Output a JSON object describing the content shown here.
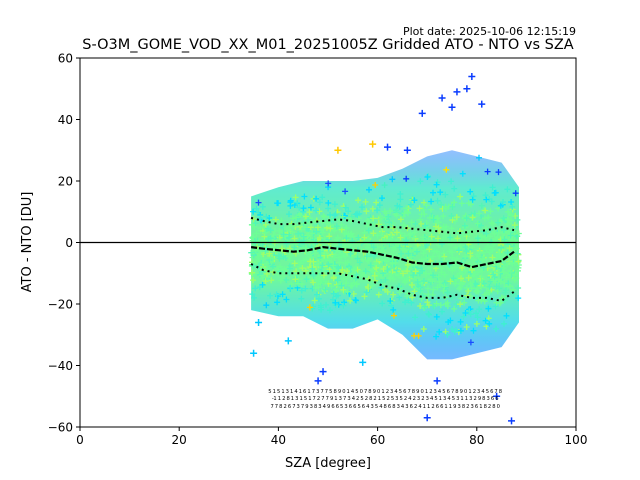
{
  "chart_data": {
    "type": "scatter",
    "title": "S-O3M_GOME_VOD_XX_M01_20251005Z Gridded ATO - NTO vs SZA",
    "plot_date": "Plot date: 2025-10-06 12:15:19",
    "xlabel": "SZA [degree]",
    "ylabel": "ATO - NTO [DU]",
    "xlim": [
      0,
      100
    ],
    "ylim": [
      -60,
      60
    ],
    "x_ticks": [
      "0",
      "20",
      "40",
      "60",
      "80",
      "100"
    ],
    "y_ticks": [
      "−60",
      "−40",
      "−20",
      "0",
      "20",
      "40",
      "60"
    ],
    "x_tick_values": [
      0,
      20,
      40,
      60,
      80,
      100
    ],
    "y_tick_values": [
      -60,
      -40,
      -20,
      0,
      20,
      40,
      60
    ],
    "grid": false,
    "marker": "+",
    "reference_line_y": 0,
    "sza_range": [
      34,
      89
    ],
    "cloud_envelope": {
      "sza": [
        34.5,
        40,
        45,
        50,
        55,
        60,
        65,
        70,
        75,
        80,
        85,
        88.5
      ],
      "upper": [
        15,
        18,
        20,
        20,
        20,
        21,
        24,
        28,
        30,
        28,
        26,
        18
      ],
      "lower": [
        -22,
        -24,
        -24,
        -28,
        -28,
        -25,
        -30,
        -38,
        -38,
        -36,
        -34,
        -26
      ]
    },
    "series": [
      {
        "name": "median",
        "style": "dashed-black",
        "x": [
          34.5,
          37,
          40,
          43,
          46,
          49,
          52,
          55,
          58,
          61,
          64,
          67,
          70,
          73,
          76,
          79,
          82,
          85,
          87.5
        ],
        "y": [
          -1.5,
          -2,
          -2.5,
          -3,
          -2.5,
          -1.5,
          -2,
          -2.5,
          -3,
          -4,
          -5,
          -6.5,
          -7,
          -7,
          -6.5,
          -8,
          -7,
          -6,
          -3
        ]
      },
      {
        "name": "upper quartile",
        "style": "dotted-black",
        "x": [
          34.5,
          37,
          40,
          43,
          46,
          49,
          52,
          55,
          58,
          61,
          64,
          67,
          70,
          73,
          76,
          79,
          82,
          85,
          87.5
        ],
        "y": [
          8,
          7,
          6,
          6,
          6.5,
          7,
          7.5,
          7,
          6,
          5,
          5,
          4.5,
          4,
          3.5,
          3,
          3.5,
          4,
          5,
          4
        ]
      },
      {
        "name": "lower quartile",
        "style": "dotted-black",
        "x": [
          34.5,
          37,
          40,
          43,
          46,
          49,
          52,
          55,
          58,
          61,
          64,
          67,
          70,
          73,
          76,
          79,
          82,
          85,
          87.5
        ],
        "y": [
          -7,
          -9,
          -10,
          -10,
          -10,
          -10,
          -10,
          -11,
          -12,
          -14,
          -15,
          -17,
          -18,
          -18,
          -17,
          -18,
          -18,
          -19,
          -16
        ]
      }
    ],
    "outliers": [
      {
        "x": 79,
        "y": 54
      },
      {
        "x": 76,
        "y": 49
      },
      {
        "x": 73,
        "y": 47
      },
      {
        "x": 81,
        "y": 45
      },
      {
        "x": 69,
        "y": 42
      },
      {
        "x": 78,
        "y": 50
      },
      {
        "x": 75,
        "y": 44
      },
      {
        "x": 48,
        "y": -45
      },
      {
        "x": 49,
        "y": -42
      },
      {
        "x": 36,
        "y": -26
      },
      {
        "x": 35,
        "y": -36
      },
      {
        "x": 42,
        "y": -32
      },
      {
        "x": 70,
        "y": -57
      },
      {
        "x": 87,
        "y": -58
      },
      {
        "x": 57,
        "y": -39
      },
      {
        "x": 62,
        "y": 31
      },
      {
        "x": 59,
        "y": 32
      },
      {
        "x": 52,
        "y": 30
      },
      {
        "x": 66,
        "y": 30
      },
      {
        "x": 72,
        "y": -45
      },
      {
        "x": 84,
        "y": -50
      }
    ],
    "annotation_rows": [
      "5 1 5 1 3 1 4 1 6 1 7 3 7 7 5 8 9 0 1 4 5 0 7 8 9 0 1 2 3 4 5 6 7 8 9 0 1 2 3 4 5 6 7 8 9 0 1 2 3 4 5 6 7 8",
      "-1 1 2 8 1 3 1 5 1 7 2 7 7 9 1 3 7 3 4 2 5 2 8 2 1 5 2 5 3 5 2 4 2 3 2 3 4 5 1 3 4 5 3 1 1 3 2 9 8 3 6 6",
      "7 7 8 2 6 7 3 7 9 3 8 3 4 9 6 6 5 3 6 6 5 6 4 3 5 4 8 6 8 3 4 3 6 2 4 1 1 2 6 6 1 1 9 3 8 2 3 6 1 8 2 8 0"
    ]
  }
}
